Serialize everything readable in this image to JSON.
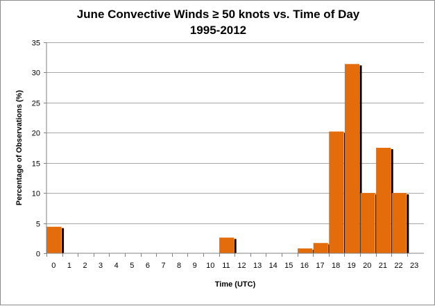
{
  "chart_data": {
    "type": "bar",
    "title_line1": "June Convective Winds ≥ 50 knots vs. Time of Day",
    "title_line2": "1995-2012",
    "xlabel": "Time (UTC)",
    "ylabel": "Percentage of Observations (%)",
    "ylim": [
      0,
      35
    ],
    "yticks": [
      "0",
      "5",
      "10",
      "15",
      "20",
      "25",
      "30",
      "35"
    ],
    "categories": [
      "0",
      "1",
      "2",
      "3",
      "4",
      "5",
      "6",
      "7",
      "8",
      "9",
      "10",
      "11",
      "12",
      "13",
      "14",
      "15",
      "16",
      "17",
      "18",
      "19",
      "20",
      "21",
      "22",
      "23"
    ],
    "values": [
      4.4,
      0,
      0,
      0,
      0,
      0,
      0,
      0,
      0,
      0,
      0,
      2.6,
      0,
      0,
      0,
      0,
      0.8,
      1.7,
      20.2,
      31.4,
      10.0,
      17.5,
      10.0,
      0
    ],
    "grid": "horizontal",
    "legend": "none",
    "colors": {
      "bar": "#e46c0a",
      "shadow": "#000000",
      "grid": "#a6a6a6"
    }
  }
}
